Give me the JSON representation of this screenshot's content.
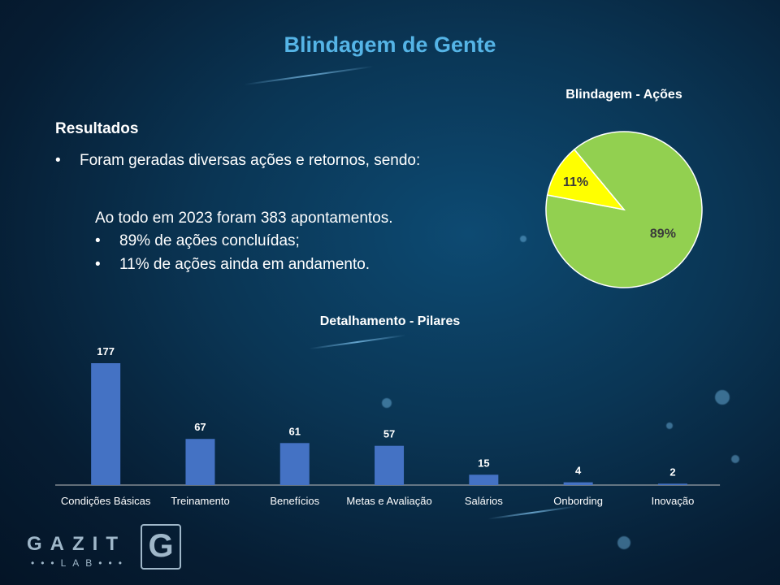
{
  "title": "Blindagem de Gente",
  "results": {
    "heading": "Resultados",
    "intro": "Foram geradas diversas ações e retornos, sendo:",
    "total": "Ao todo em 2023 foram 383 apontamentos.",
    "items": [
      "89% de ações concluídas;",
      "11% de ações ainda em andamento."
    ],
    "bullet": "•"
  },
  "logo": {
    "word": "GAZIT",
    "sub": "•••LAB•••",
    "mark": "G"
  },
  "colors": {
    "accent": "#55b4e6",
    "bar": "#4472c4",
    "pie_done": "#92d050",
    "pie_ongoing": "#ffff00"
  },
  "chart_data": [
    {
      "type": "pie",
      "title": "Blindagem  - Ações",
      "slices": [
        {
          "label": "89%",
          "value": 89,
          "color": "#92d050"
        },
        {
          "label": "11%",
          "value": 11,
          "color": "#ffff00"
        }
      ]
    },
    {
      "type": "bar",
      "title": "Detalhamento  - Pilares",
      "categories": [
        "Condições Básicas",
        "Treinamento",
        "Benefícios",
        "Metas e Avaliação",
        "Salários",
        "Onbording",
        "Inovação"
      ],
      "values": [
        177,
        67,
        61,
        57,
        15,
        4,
        2
      ],
      "ylim": [
        0,
        177
      ],
      "grid": false
    }
  ]
}
